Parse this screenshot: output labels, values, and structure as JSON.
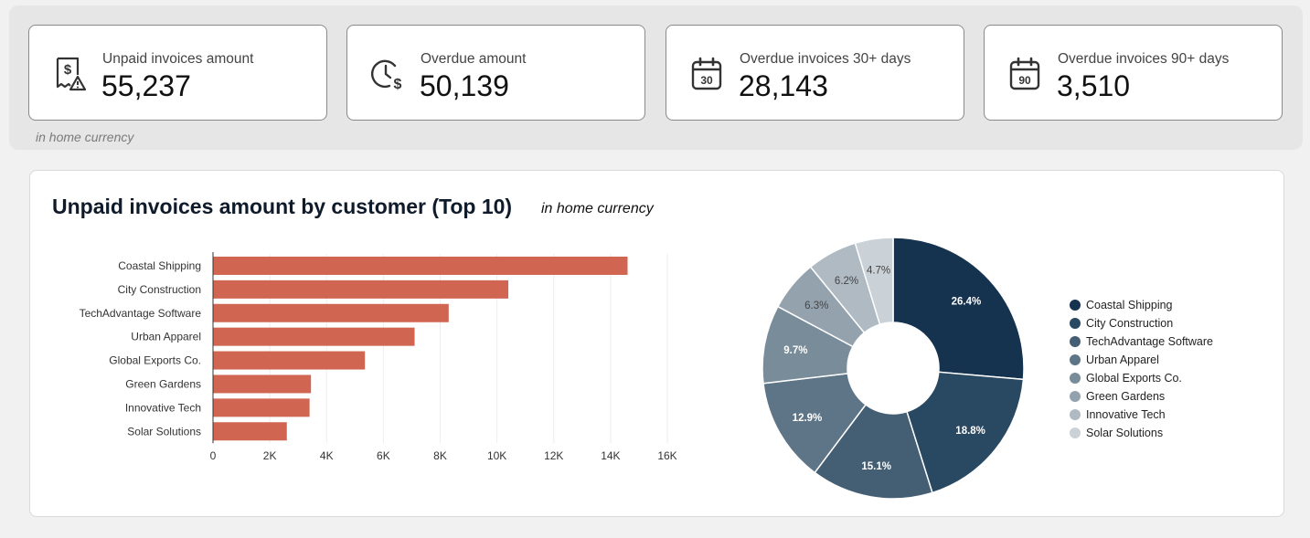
{
  "kpis": [
    {
      "label": "Unpaid invoices amount",
      "value": "55,237",
      "icon": "receipt-warning-icon"
    },
    {
      "label": "Overdue amount",
      "value": "50,139",
      "icon": "clock-dollar-icon"
    },
    {
      "label": "Overdue invoices 30+ days",
      "value": "28,143",
      "icon": "calendar-30-icon",
      "icon_text": "30"
    },
    {
      "label": "Overdue invoices 90+ days",
      "value": "3,510",
      "icon": "calendar-90-icon",
      "icon_text": "90"
    }
  ],
  "kpi_note": "in home currency",
  "chart": {
    "title": "Unpaid invoices amount by customer (Top 10)",
    "subtitle": "in home currency"
  },
  "colors": {
    "bar": "#d06552",
    "pie": [
      "#15324e",
      "#294861",
      "#445f74",
      "#5e7587",
      "#798c9a",
      "#94a2ae",
      "#afbac2",
      "#cad1d7"
    ],
    "pie_label_light": "#ffffff",
    "pie_label_dark": "#444444"
  },
  "chart_data": [
    {
      "type": "bar",
      "orientation": "horizontal",
      "categories": [
        "Coastal Shipping",
        "City Construction",
        "TechAdvantage Software",
        "Urban Apparel",
        "Global Exports Co.",
        "Green Gardens",
        "Innovative Tech",
        "Solar Solutions"
      ],
      "values": [
        14600,
        10400,
        8300,
        7100,
        5350,
        3450,
        3400,
        2600
      ],
      "xlim": [
        0,
        16000
      ],
      "xticks": [
        0,
        2000,
        4000,
        6000,
        8000,
        10000,
        12000,
        14000,
        16000
      ],
      "xtick_labels": [
        "0",
        "2K",
        "4K",
        "6K",
        "8K",
        "10K",
        "12K",
        "14K",
        "16K"
      ],
      "grid": true
    },
    {
      "type": "pie",
      "donut": true,
      "labels": [
        "Coastal Shipping",
        "City Construction",
        "TechAdvantage Software",
        "Urban Apparel",
        "Global Exports Co.",
        "Green Gardens",
        "Innovative Tech",
        "Solar Solutions"
      ],
      "values": [
        26.4,
        18.8,
        15.1,
        12.9,
        9.7,
        6.3,
        6.2,
        4.7
      ],
      "value_labels": [
        "26.4%",
        "18.8%",
        "15.1%",
        "12.9%",
        "9.7%",
        "6.3%",
        "6.2%",
        "4.7%"
      ],
      "legend_position": "right"
    }
  ]
}
